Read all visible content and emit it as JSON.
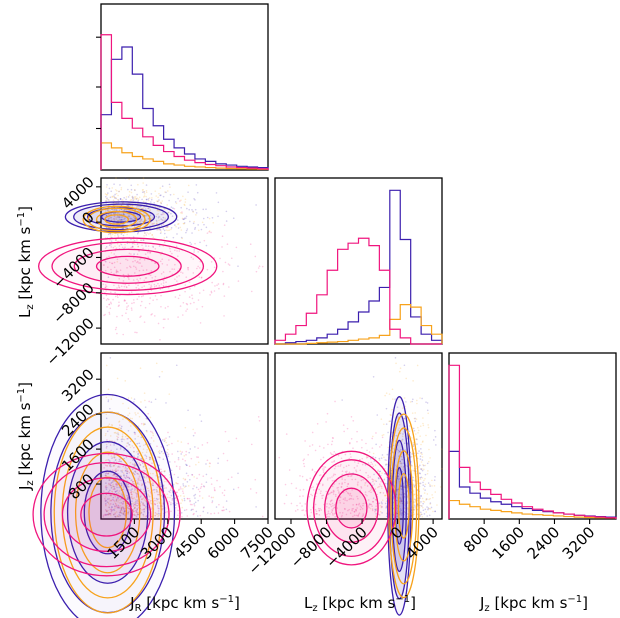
{
  "colors": {
    "blue": "#3b1fae",
    "orange": "#f7a21b",
    "pink": "#f0157e"
  },
  "chart_data": {
    "type": "corner",
    "variables": [
      "J_R",
      "L_z",
      "J_z"
    ],
    "units": "kpc km s⁻¹",
    "axis_labels": {
      "jr": {
        "main": "J",
        "sub": "R",
        "unit": " [kpc km s",
        "sup": "−1",
        "close": "]"
      },
      "lz": {
        "main": "L",
        "sub": "z",
        "unit": " [kpc km s",
        "sup": "−1",
        "close": "]"
      },
      "jz": {
        "main": "J",
        "sub": "z",
        "unit": " [kpc km s",
        "sup": "−1",
        "close": "]"
      }
    },
    "ranges": {
      "jr": [
        0,
        7500
      ],
      "lz": [
        -13800,
        5000
      ],
      "jz": [
        0,
        3800
      ]
    },
    "ticks": {
      "jr": {
        "values": [
          1500,
          3000,
          4500,
          6000,
          7500
        ],
        "labels": [
          "1500",
          "3000",
          "4500",
          "6000",
          "7500"
        ]
      },
      "lz": {
        "values": [
          -12000,
          -8000,
          -4000,
          0,
          4000
        ],
        "labels": [
          "−12000",
          "−8000",
          "−4000",
          "0",
          "4000"
        ]
      },
      "jz": {
        "values": [
          800,
          1600,
          2400,
          3200
        ],
        "labels": [
          "800",
          "1600",
          "2400",
          "3200"
        ]
      }
    },
    "series": [
      {
        "color_key": "blue",
        "hist_jr": [
          0.45,
          0.9,
          1.0,
          0.78,
          0.5,
          0.36,
          0.25,
          0.18,
          0.13,
          0.09,
          0.07,
          0.05,
          0.04,
          0.03,
          0.025,
          0.02
        ],
        "hist_lz": [
          0.0,
          0.01,
          0.02,
          0.03,
          0.05,
          0.08,
          0.12,
          0.18,
          0.26,
          0.35,
          0.46,
          1.25,
          0.85,
          0.22,
          0.08,
          0.03
        ],
        "hist_jz": [
          0.55,
          0.26,
          0.21,
          0.17,
          0.14,
          0.12,
          0.1,
          0.085,
          0.07,
          0.06,
          0.05,
          0.04,
          0.03,
          0.025,
          0.02,
          0.015
        ]
      },
      {
        "color_key": "orange",
        "hist_jr": [
          0.22,
          0.18,
          0.14,
          0.11,
          0.09,
          0.07,
          0.05,
          0.04,
          0.03,
          0.025,
          0.02,
          0.015,
          0.012,
          0.01,
          0.008,
          0.006
        ],
        "hist_lz": [
          0.0,
          0.0,
          0.0,
          0.005,
          0.01,
          0.015,
          0.02,
          0.03,
          0.04,
          0.05,
          0.07,
          0.2,
          0.32,
          0.3,
          0.15,
          0.08
        ],
        "hist_jz": [
          0.15,
          0.12,
          0.1,
          0.08,
          0.07,
          0.06,
          0.05,
          0.04,
          0.035,
          0.03,
          0.025,
          0.02,
          0.015,
          0.012,
          0.01,
          0.008
        ]
      },
      {
        "color_key": "pink",
        "hist_jr": [
          1.1,
          0.55,
          0.42,
          0.34,
          0.27,
          0.2,
          0.15,
          0.11,
          0.08,
          0.06,
          0.045,
          0.035,
          0.025,
          0.02,
          0.015,
          0.01
        ],
        "hist_lz": [
          0.03,
          0.08,
          0.15,
          0.25,
          0.4,
          0.6,
          0.77,
          0.82,
          0.86,
          0.8,
          0.6,
          0.12,
          0.05,
          0.0,
          0.0,
          0.0
        ],
        "hist_jz": [
          1.25,
          0.42,
          0.3,
          0.24,
          0.2,
          0.16,
          0.13,
          0.1,
          0.08,
          0.065,
          0.05,
          0.04,
          0.03,
          0.022,
          0.016,
          0.01
        ]
      }
    ]
  }
}
